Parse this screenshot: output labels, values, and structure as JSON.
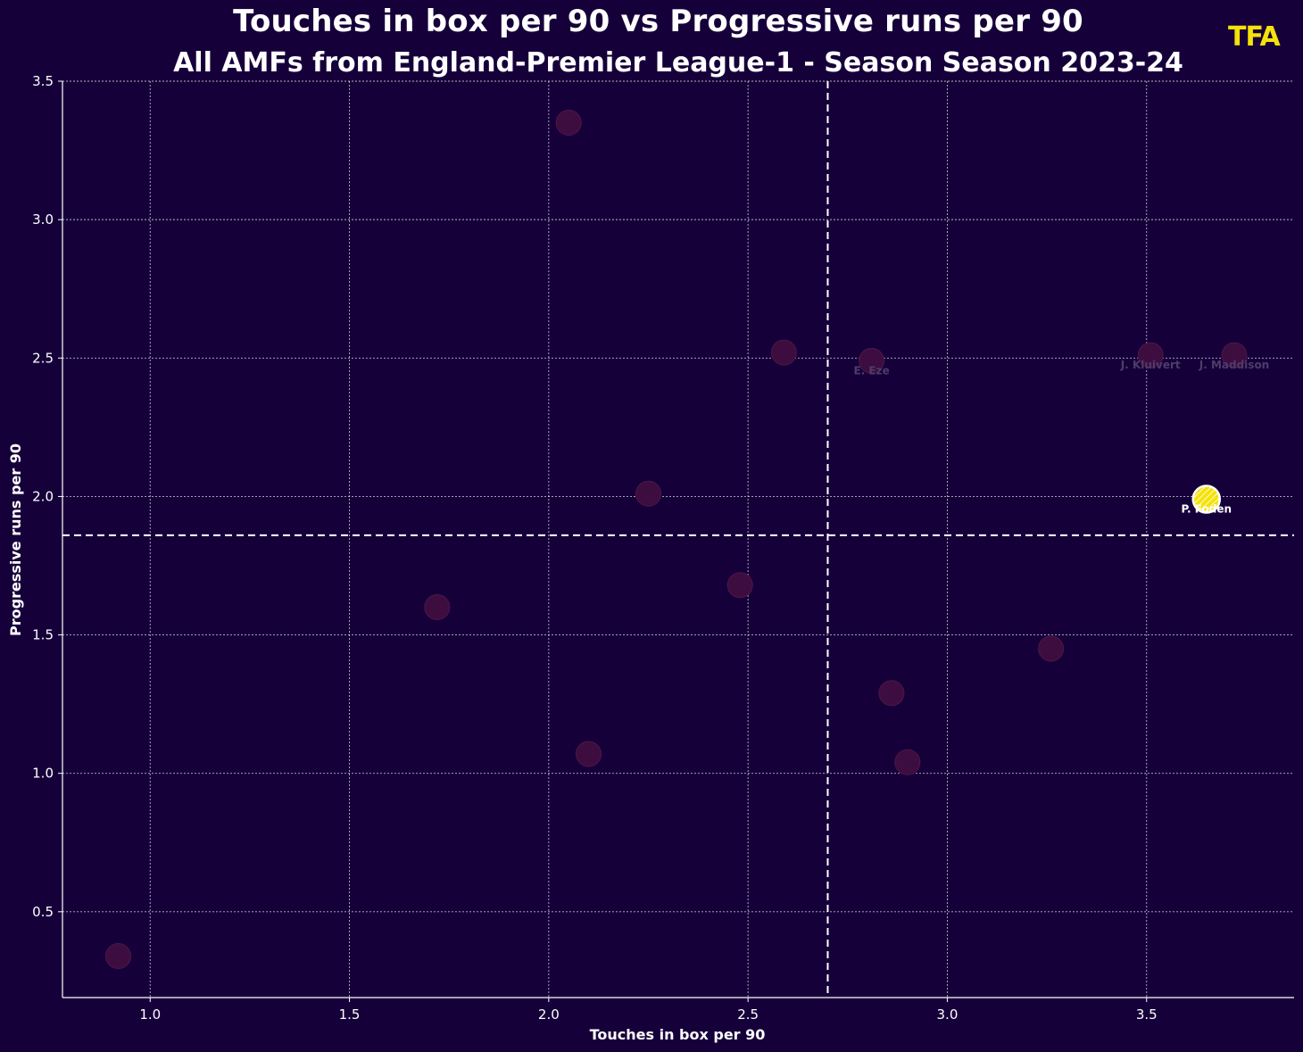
{
  "header": {
    "title": "Touches in box per 90 vs Progressive runs per 90",
    "subtitle": "All AMFs from England-Premier League-1 - Season Season 2023-24",
    "logo_text": "TFA"
  },
  "colors": {
    "background": "#16003a",
    "point_default": "#3d0d3f",
    "point_default_stroke": "#4a1848",
    "highlight_fill": "#f5e20a",
    "highlight_stroke": "#ffffff",
    "logo": "#f5e20a",
    "muted_label": "#4e3c6a"
  },
  "chart_data": {
    "type": "scatter",
    "title": "Touches in box per 90 vs Progressive runs per 90",
    "subtitle": "All AMFs from England-Premier League-1 - Season Season 2023-24",
    "xlabel": "Touches in box per 90",
    "ylabel": "Progressive runs per 90",
    "xlim": [
      0.78,
      3.87
    ],
    "ylim": [
      0.19,
      3.5
    ],
    "xticks": [
      1.0,
      1.5,
      2.0,
      2.5,
      3.0,
      3.5
    ],
    "yticks": [
      0.5,
      1.0,
      1.5,
      2.0,
      2.5,
      3.0,
      3.5
    ],
    "grid": true,
    "reference_lines": {
      "x_mean": 2.7,
      "y_mean": 1.86
    },
    "points": [
      {
        "x": 0.92,
        "y": 0.34,
        "label": "",
        "highlight": false
      },
      {
        "x": 1.72,
        "y": 1.6,
        "label": "",
        "highlight": false
      },
      {
        "x": 2.05,
        "y": 3.35,
        "label": "",
        "highlight": false
      },
      {
        "x": 2.1,
        "y": 1.07,
        "label": "",
        "highlight": false
      },
      {
        "x": 2.25,
        "y": 2.01,
        "label": "",
        "highlight": false
      },
      {
        "x": 2.48,
        "y": 1.68,
        "label": "",
        "highlight": false
      },
      {
        "x": 2.59,
        "y": 2.52,
        "label": "",
        "highlight": false
      },
      {
        "x": 2.81,
        "y": 2.49,
        "label": "E. Eze",
        "highlight": false
      },
      {
        "x": 2.86,
        "y": 1.29,
        "label": "",
        "highlight": false
      },
      {
        "x": 2.9,
        "y": 1.04,
        "label": "",
        "highlight": false
      },
      {
        "x": 3.26,
        "y": 1.45,
        "label": "",
        "highlight": false
      },
      {
        "x": 3.51,
        "y": 2.51,
        "label": "J. Kluivert",
        "highlight": false
      },
      {
        "x": 3.72,
        "y": 2.51,
        "label": "J. Maddison",
        "highlight": false
      },
      {
        "x": 3.65,
        "y": 1.99,
        "label": "P. Foden",
        "highlight": true
      }
    ]
  }
}
